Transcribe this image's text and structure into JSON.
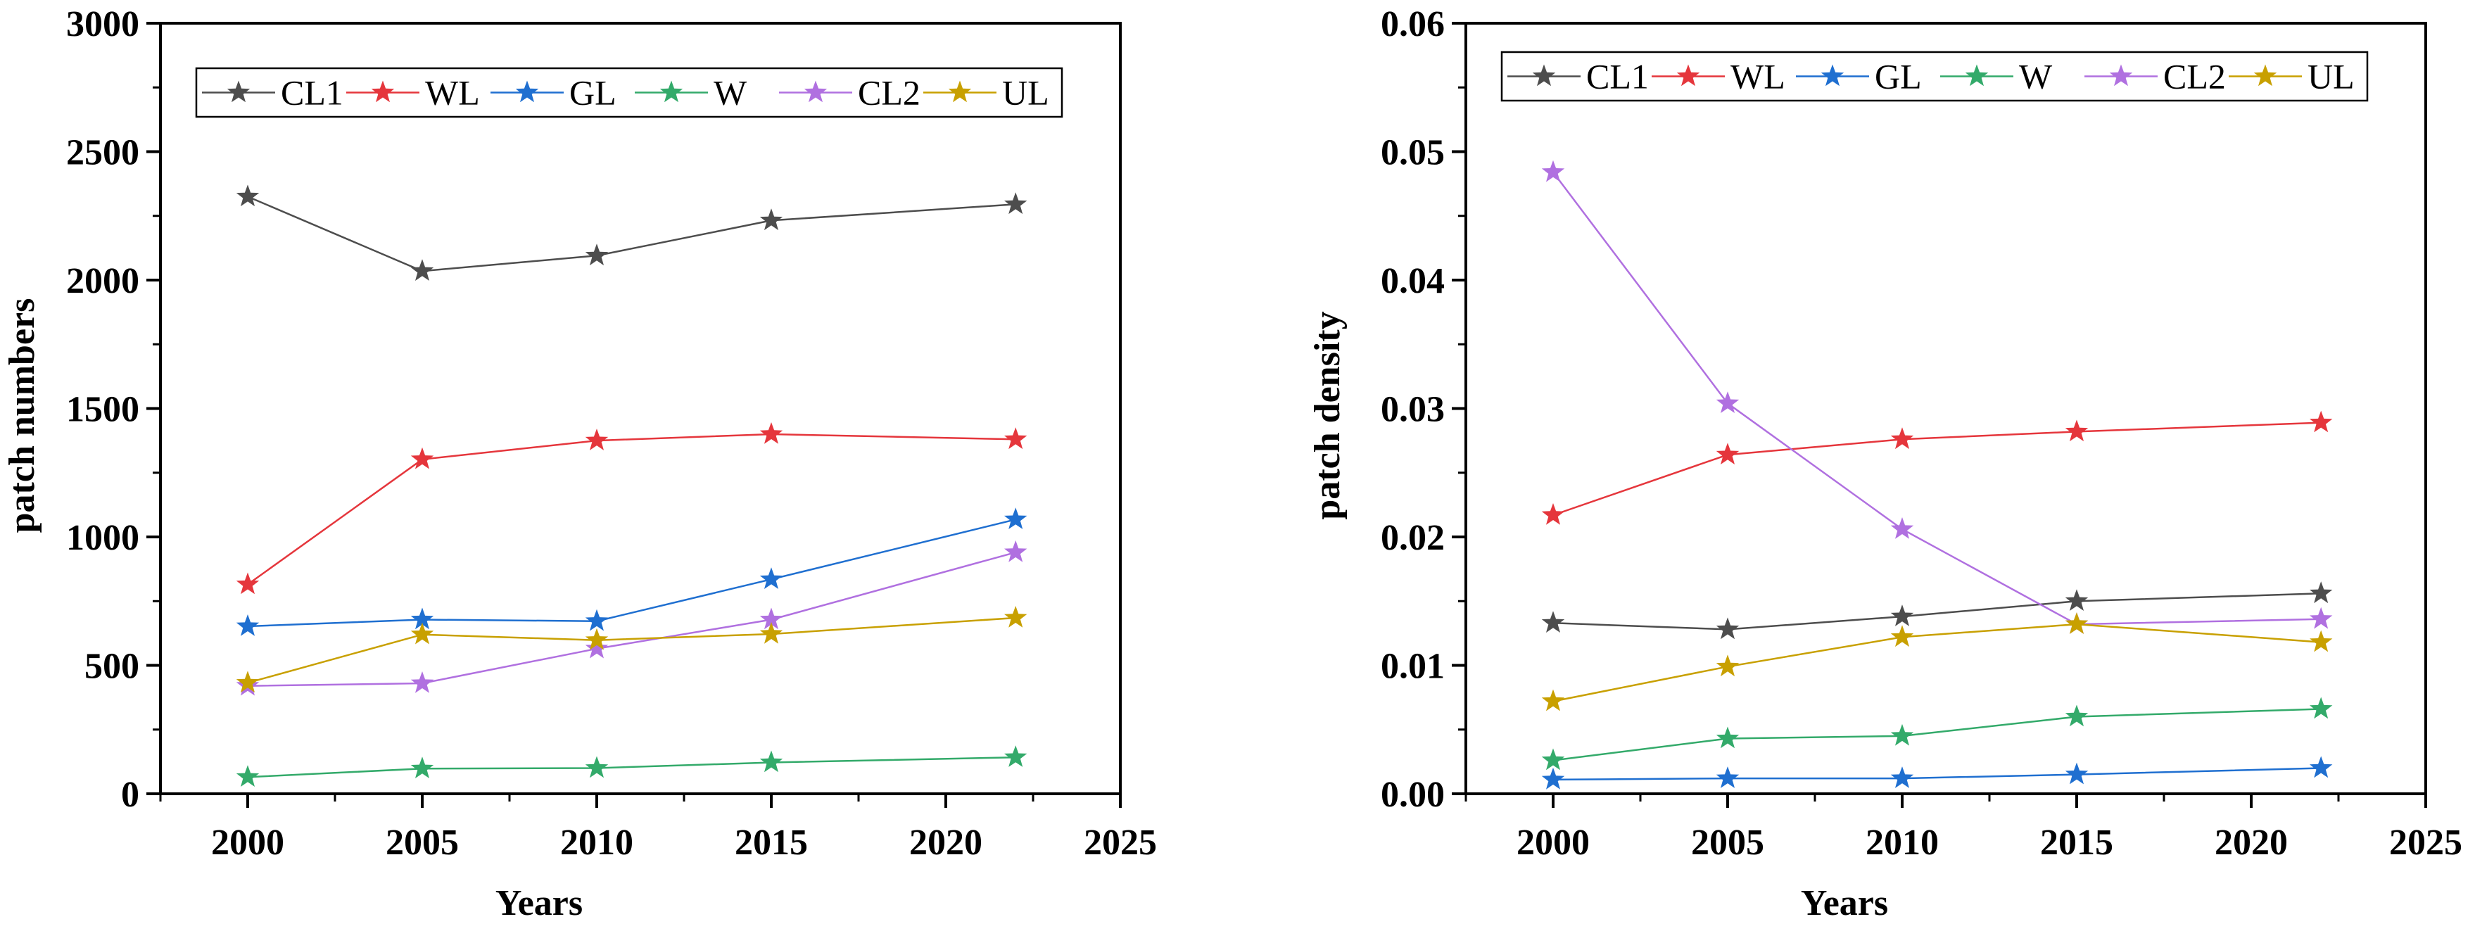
{
  "chart_data": [
    {
      "type": "line",
      "title": "",
      "xlabel": "Years",
      "ylabel": "patch numbers",
      "xlim": [
        1997.5,
        2025
      ],
      "ylim": [
        0,
        3000
      ],
      "xticks": [
        2000,
        2005,
        2010,
        2015,
        2020,
        2025
      ],
      "yticks": [
        0,
        500,
        1000,
        1500,
        2000,
        2500,
        3000
      ],
      "x_tick_labels": [
        "2000",
        "2005",
        "2010",
        "2015",
        "2020",
        "2025"
      ],
      "y_tick_labels": [
        "0",
        "500",
        "1000",
        "1500",
        "2000",
        "2500",
        "3000"
      ],
      "x": [
        2000,
        2005,
        2010,
        2015,
        2022
      ],
      "legend_position": "top",
      "series": [
        {
          "name": "CL1",
          "color": "#4d4d4d",
          "values": [
            2325,
            2035,
            2095,
            2232,
            2295
          ]
        },
        {
          "name": "WL",
          "color": "#e5363c",
          "values": [
            815,
            1302,
            1375,
            1400,
            1380
          ]
        },
        {
          "name": "GL",
          "color": "#1f6fd0",
          "values": [
            652,
            678,
            672,
            835,
            1068
          ]
        },
        {
          "name": "W",
          "color": "#33aa6a",
          "values": [
            65,
            98,
            100,
            122,
            142
          ]
        },
        {
          "name": "CL2",
          "color": "#b070e0",
          "values": [
            420,
            430,
            565,
            678,
            940
          ]
        },
        {
          "name": "UL",
          "color": "#c8a000",
          "values": [
            432,
            620,
            598,
            622,
            685
          ]
        }
      ]
    },
    {
      "type": "line",
      "title": "",
      "xlabel": "Years",
      "ylabel": "patch density",
      "xlim": [
        1997.5,
        2025
      ],
      "ylim": [
        0,
        0.06
      ],
      "xticks": [
        2000,
        2005,
        2010,
        2015,
        2020,
        2025
      ],
      "yticks": [
        0,
        0.01,
        0.02,
        0.03,
        0.04,
        0.05,
        0.06
      ],
      "x_tick_labels": [
        "2000",
        "2005",
        "2010",
        "2015",
        "2020",
        "2025"
      ],
      "y_tick_labels": [
        "0.00",
        "0.01",
        "0.02",
        "0.03",
        "0.04",
        "0.05",
        "0.06"
      ],
      "x": [
        2000,
        2005,
        2010,
        2015,
        2022
      ],
      "legend_position": "top",
      "series": [
        {
          "name": "CL1",
          "color": "#4d4d4d",
          "values": [
            0.0133,
            0.0128,
            0.0138,
            0.015,
            0.0156
          ]
        },
        {
          "name": "WL",
          "color": "#e5363c",
          "values": [
            0.0217,
            0.0264,
            0.0276,
            0.0282,
            0.0289
          ]
        },
        {
          "name": "GL",
          "color": "#1f6fd0",
          "values": [
            0.0011,
            0.0012,
            0.0012,
            0.0015,
            0.002
          ]
        },
        {
          "name": "W",
          "color": "#33aa6a",
          "values": [
            0.0026,
            0.0043,
            0.0045,
            0.006,
            0.0066
          ]
        },
        {
          "name": "CL2",
          "color": "#b070e0",
          "values": [
            0.0484,
            0.0304,
            0.0206,
            0.0132,
            0.0136
          ]
        },
        {
          "name": "UL",
          "color": "#c8a000",
          "values": [
            0.0072,
            0.0099,
            0.0122,
            0.0132,
            0.0118
          ]
        }
      ]
    }
  ]
}
